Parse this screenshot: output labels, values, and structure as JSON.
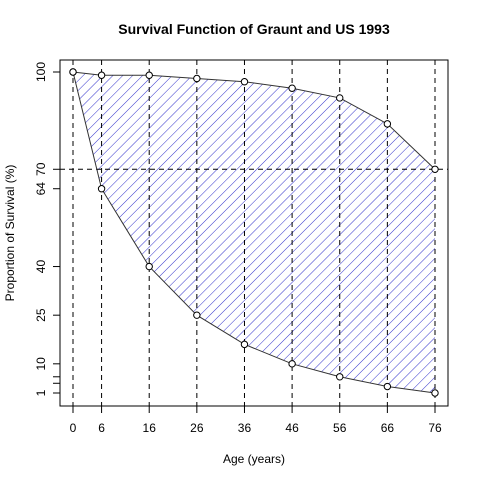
{
  "chart_data": {
    "type": "area",
    "title": "Survival Function of Graunt and US 1993",
    "xlabel": "Age (years)",
    "ylabel": "Proportion of Survival (%)",
    "xlim": [
      0,
      76
    ],
    "ylim": [
      1,
      100
    ],
    "x_ticks": [
      0,
      6,
      16,
      26,
      36,
      46,
      56,
      66,
      76
    ],
    "y_ticks": [
      1,
      10,
      25,
      40,
      64,
      70,
      100
    ],
    "x_ticks_unlabeled": [],
    "y_ticks_unlabeled": [
      4,
      6
    ],
    "vertical_reference_lines_at_x": [
      0,
      6,
      16,
      26,
      36,
      46,
      56,
      66,
      76
    ],
    "horizontal_reference_line_at_y": 70,
    "fill_pattern": "diagonal hatch",
    "colors": {
      "hatch": "#3333cc",
      "curve": "#333333",
      "point_fill": "#ffffff"
    },
    "series": [
      {
        "x": [
          0,
          6,
          16,
          26,
          36,
          46,
          56,
          66,
          76
        ],
        "values": [
          100,
          99,
          99,
          98,
          97,
          95,
          92,
          84,
          70
        ]
      },
      {
        "x": [
          0,
          6,
          16,
          26,
          36,
          46,
          56,
          66,
          76
        ],
        "values": [
          100,
          64,
          40,
          25,
          16,
          10,
          6,
          3,
          1
        ]
      }
    ]
  }
}
